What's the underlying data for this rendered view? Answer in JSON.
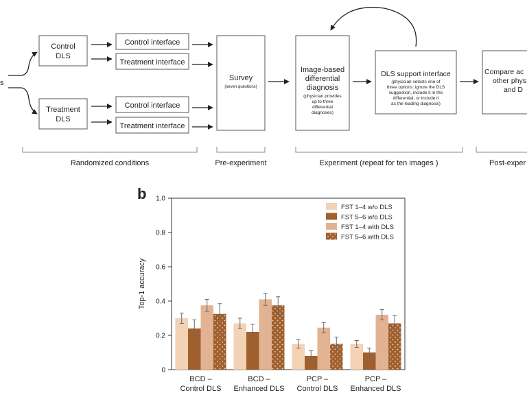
{
  "flow": {
    "left_edge_text": "s",
    "control_dls": [
      "Control",
      "DLS"
    ],
    "treatment_dls": [
      "Treatment",
      "DLS"
    ],
    "control_interface": "Control interface",
    "treatment_interface": "Treatment interface",
    "survey_title": "Survey",
    "survey_note": "(seven questions)",
    "image_dx": [
      "Image-based",
      "differential",
      "diagnosis"
    ],
    "image_dx_note": [
      "(physician provides",
      "up to three",
      "differential",
      "diagnoses)"
    ],
    "dls_support": "DLS support interface",
    "dls_support_note": [
      "(physician selects one of",
      "three options: ignore the DLS",
      "suggestion, include it in the",
      "differential, or include it",
      "as the leading diagnosis)"
    ],
    "compare": [
      "Compare ac",
      "other phys",
      "and D"
    ],
    "phase_randomized": "Randomized conditions",
    "phase_pre": "Pre-experiment",
    "phase_experiment": "Experiment (repeat for ten images )",
    "phase_post": "Post-exper"
  },
  "panel_label": "b",
  "chart_data": {
    "type": "bar",
    "ylabel": "Top-1 accuracy",
    "ylim": [
      0,
      1.0
    ],
    "yticks": [
      "0",
      "0.2",
      "0.4",
      "0.6",
      "0.8",
      "1.0"
    ],
    "categories": [
      [
        "BCD –",
        "Control DLS"
      ],
      [
        "BCD –",
        "Enhanced DLS"
      ],
      [
        "PCP –",
        "Control DLS"
      ],
      [
        "PCP –",
        "Enhanced DLS"
      ]
    ],
    "series": [
      {
        "name": "FST 1–4 w/o DLS",
        "color": "#f3d2b6",
        "pattern": "none",
        "values": [
          0.3,
          0.27,
          0.15,
          0.15
        ],
        "err": [
          0.03,
          0.03,
          0.025,
          0.02
        ]
      },
      {
        "name": "FST 5–6 w/o DLS",
        "color": "#a0602e",
        "pattern": "none",
        "values": [
          0.24,
          0.22,
          0.08,
          0.1
        ],
        "err": [
          0.05,
          0.045,
          0.03,
          0.025
        ]
      },
      {
        "name": "FST 1–4 with DLS",
        "color": "#e2b393",
        "pattern": "none",
        "values": [
          0.375,
          0.41,
          0.245,
          0.32
        ],
        "err": [
          0.035,
          0.035,
          0.03,
          0.03
        ]
      },
      {
        "name": "FST 5–6 with DLS",
        "color": "#a0602e",
        "pattern": "dots",
        "values": [
          0.325,
          0.375,
          0.15,
          0.27
        ],
        "err": [
          0.06,
          0.05,
          0.04,
          0.045
        ]
      }
    ],
    "legend_position": "top-right"
  }
}
